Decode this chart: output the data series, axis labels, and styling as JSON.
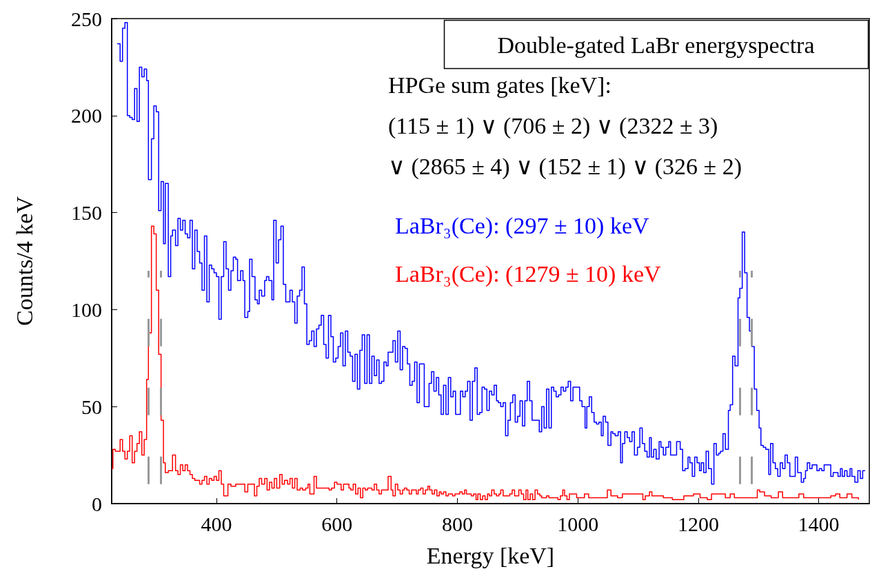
{
  "chart_data": {
    "type": "step",
    "title": "Double-gated LaBr energyspectra",
    "xlabel": "Energy [keV]",
    "ylabel": "Counts/4 keV",
    "annotations": [
      "HPGe sum gates [keV]:",
      "(115 ± 1) ∨ (706 ± 2) ∨ (2322 ± 3)",
      "∨ (2865 ± 4) ∨ (152 ± 1) ∨ (326 ± 2)"
    ],
    "xlim": [
      226,
      1484
    ],
    "xticks": [
      400,
      600,
      800,
      1000,
      1200,
      1400
    ],
    "ylim": [
      0,
      250
    ],
    "yticks": [
      0,
      50,
      100,
      150,
      200,
      250
    ],
    "grid": false,
    "legend": "top right",
    "marker": "none",
    "line_style": "solid",
    "ref_lines": [
      {
        "axis": "x",
        "value": 287,
        "color": "#999999",
        "line_style": "dashed"
      },
      {
        "axis": "x",
        "value": 307,
        "color": "#999999",
        "line_style": "dashed"
      },
      {
        "axis": "x",
        "value": 1269,
        "color": "#999999",
        "line_style": "dashed"
      },
      {
        "axis": "x",
        "value": 1289,
        "color": "#999999",
        "line_style": "dashed"
      }
    ],
    "series": [
      {
        "name": "LaBr₃(Ce): (297 ± 10) keV",
        "color": "#0000ff",
        "x": [
          235,
          240,
          244,
          248,
          252,
          256,
          260,
          264,
          268,
          272,
          276,
          280,
          284,
          287,
          292,
          296,
          300,
          304,
          308,
          312,
          315,
          320,
          324,
          327,
          332,
          336,
          340,
          344,
          348,
          352,
          356,
          360,
          364,
          368,
          372,
          376,
          380,
          384,
          388,
          392,
          396,
          400,
          404,
          408,
          412,
          416,
          420,
          424,
          428,
          432,
          435,
          440,
          444,
          447,
          452,
          455,
          459,
          464,
          468,
          471,
          475,
          480,
          483,
          487,
          492,
          495,
          499,
          503,
          507,
          511,
          515,
          518,
          522,
          526,
          530,
          534,
          538,
          542,
          546,
          550,
          554,
          558,
          562,
          566,
          570,
          574,
          578,
          582,
          586,
          590,
          594,
          598,
          602,
          606,
          610,
          614,
          618,
          622,
          626,
          630,
          634,
          638,
          642,
          646,
          650,
          654,
          658,
          662,
          666,
          670,
          674,
          678,
          682,
          685,
          689,
          693,
          697,
          701,
          705,
          709,
          713,
          717,
          721,
          725,
          729,
          733,
          737,
          741,
          745,
          753,
          757,
          761,
          765,
          769,
          773,
          777,
          781,
          785,
          789,
          793,
          797,
          801,
          805,
          809,
          813,
          817,
          821,
          825,
          829,
          833,
          837,
          841,
          845,
          849,
          853,
          857,
          861,
          865,
          868,
          872,
          876,
          880,
          884,
          888,
          892,
          896,
          900,
          904,
          908,
          912,
          916,
          920,
          924,
          936,
          940,
          944,
          948,
          952,
          956,
          960,
          964,
          968,
          972,
          976,
          980,
          984,
          988,
          992,
          997,
          1003,
          1007,
          1012,
          1015,
          1019,
          1023,
          1027,
          1031,
          1035,
          1039,
          1042,
          1046,
          1050,
          1055,
          1058,
          1062,
          1067,
          1071,
          1074,
          1078,
          1082,
          1086,
          1090,
          1094,
          1099,
          1103,
          1107,
          1111,
          1115,
          1119,
          1122,
          1126,
          1130,
          1135,
          1138,
          1142,
          1146,
          1151,
          1154,
          1164,
          1170,
          1174,
          1178,
          1183,
          1186,
          1190,
          1194,
          1198,
          1202,
          1205,
          1209,
          1213,
          1217,
          1222,
          1226,
          1230,
          1234,
          1237,
          1241,
          1245,
          1250,
          1253,
          1257,
          1261,
          1266,
          1269,
          1273,
          1277,
          1281,
          1285,
          1289,
          1293,
          1297,
          1301,
          1304,
          1308,
          1312,
          1317,
          1320,
          1324,
          1328,
          1332,
          1336,
          1340,
          1344,
          1348,
          1352,
          1361,
          1365,
          1371,
          1375,
          1378,
          1381,
          1385,
          1389,
          1394,
          1397,
          1401,
          1405,
          1409,
          1420,
          1424,
          1432,
          1436,
          1439,
          1443,
          1447,
          1452,
          1455,
          1460,
          1465,
          1469,
          1473,
          1477
        ],
        "values": [
          237,
          228,
          245,
          248,
          200,
          199,
          198,
          214,
          197,
          225,
          220,
          224,
          218,
          167,
          188,
          205,
          202,
          151,
          166,
          134,
          165,
          117,
          138,
          141,
          133,
          147,
          141,
          146,
          139,
          137,
          146,
          121,
          141,
          130,
          124,
          110,
          138,
          104,
          123,
          121,
          119,
          117,
          95,
          117,
          135,
          121,
          110,
          120,
          127,
          126,
          115,
          120,
          115,
          96,
          99,
          126,
          117,
          105,
          103,
          110,
          107,
          115,
          117,
          115,
          105,
          146,
          124,
          136,
          143,
          113,
          104,
          104,
          110,
          104,
          93,
          107,
          110,
          122,
          103,
          82,
          84,
          89,
          81,
          90,
          92,
          97,
          82,
          75,
          97,
          86,
          73,
          75,
          81,
          88,
          71,
          89,
          78,
          76,
          63,
          77,
          59,
          79,
          87,
          62,
          87,
          62,
          76,
          66,
          74,
          62,
          63,
          73,
          71,
          78,
          78,
          84,
          73,
          89,
          69,
          81,
          80,
          72,
          61,
          63,
          73,
          52,
          72,
          72,
          50,
          62,
          68,
          58,
          65,
          56,
          46,
          61,
          46,
          65,
          55,
          58,
          46,
          46,
          58,
          55,
          58,
          63,
          43,
          63,
          70,
          46,
          47,
          60,
          59,
          48,
          58,
          56,
          61,
          53,
          52,
          50,
          52,
          35,
          43,
          52,
          56,
          42,
          45,
          53,
          40,
          53,
          63,
          53,
          43,
          37,
          50,
          39,
          59,
          39,
          60,
          58,
          55,
          56,
          60,
          58,
          60,
          63,
          53,
          60,
          60,
          53,
          50,
          39,
          50,
          55,
          47,
          42,
          41,
          42,
          35,
          45,
          42,
          30,
          37,
          36,
          35,
          37,
          21,
          31,
          37,
          34,
          32,
          37,
          25,
          29,
          39,
          31,
          27,
          24,
          34,
          24,
          28,
          23,
          32,
          29,
          25,
          29,
          32,
          25,
          32,
          28,
          17,
          18,
          24,
          21,
          14,
          24,
          21,
          17,
          21,
          16,
          27,
          18,
          10,
          31,
          25,
          26,
          27,
          36,
          28,
          48,
          51,
          76,
          71,
          106,
          111,
          140,
          119,
          96,
          89,
          81,
          59,
          48,
          39,
          30,
          29,
          28,
          15,
          31,
          21,
          18,
          14,
          21,
          18,
          25,
          21,
          14,
          24,
          16,
          11,
          13,
          17,
          21,
          18,
          20,
          20,
          17,
          18,
          17,
          20,
          14,
          16,
          14,
          18,
          14,
          17,
          14,
          18,
          14,
          11,
          17,
          13,
          17,
          17
        ]
      },
      {
        "name": "LaBr₃(Ce): (1279 ± 10) keV",
        "color": "#ff0000",
        "x": [
          226,
          228,
          232,
          240,
          244,
          248,
          252,
          256,
          260,
          264,
          268,
          272,
          276,
          280,
          284,
          287,
          292,
          296,
          300,
          304,
          308,
          312,
          315,
          320,
          327,
          332,
          336,
          340,
          344,
          348,
          352,
          356,
          360,
          364,
          372,
          376,
          380,
          384,
          388,
          392,
          396,
          400,
          404,
          408,
          412,
          419,
          424,
          432,
          447,
          452,
          463,
          467,
          471,
          475,
          480,
          484,
          488,
          492,
          496,
          500,
          505,
          509,
          513,
          518,
          522,
          526,
          530,
          534,
          539,
          543,
          548,
          552,
          555,
          562,
          566,
          578,
          582,
          587,
          591,
          596,
          600,
          603,
          607,
          611,
          616,
          620,
          623,
          627,
          631,
          635,
          639,
          643,
          647,
          651,
          655,
          658,
          662,
          666,
          670,
          674,
          677,
          681,
          685,
          690,
          693,
          697,
          701,
          705,
          709,
          712,
          716,
          720,
          724,
          728,
          732,
          735,
          739,
          743,
          747,
          751,
          754,
          758,
          762,
          766,
          770,
          773,
          777,
          781,
          785,
          792,
          796,
          800,
          804,
          808,
          812,
          815,
          819,
          823,
          827,
          831,
          834,
          838,
          842,
          846,
          850,
          853,
          857,
          861,
          865,
          869,
          872,
          876,
          880,
          887,
          891,
          895,
          898,
          902,
          906,
          910,
          914,
          917,
          921,
          925,
          929,
          933,
          937,
          940,
          948,
          952,
          956,
          959,
          963,
          967,
          971,
          975,
          978,
          982,
          986,
          994,
          998,
          1011,
          1018,
          1022,
          1049,
          1055,
          1066,
          1074,
          1108,
          1112,
          1119,
          1123,
          1142,
          1157,
          1176,
          1192,
          1197,
          1203,
          1215,
          1222,
          1230,
          1245,
          1253,
          1260,
          1268,
          1279,
          1286,
          1291,
          1298,
          1302,
          1310,
          1321,
          1333,
          1340,
          1359,
          1367,
          1375,
          1397,
          1420,
          1428,
          1435,
          1447,
          1455,
          1466
        ],
        "values": [
          18,
          28,
          27,
          33,
          27,
          23,
          27,
          35,
          21,
          27,
          31,
          37,
          25,
          33,
          64,
          88,
          143,
          139,
          110,
          77,
          43,
          21,
          16,
          17,
          25,
          17,
          15,
          20,
          17,
          20,
          17,
          15,
          13,
          12,
          10,
          12,
          14,
          10,
          13,
          12,
          14,
          12,
          17,
          10,
          4,
          10,
          9,
          10,
          6,
          10,
          4,
          9,
          13,
          10,
          13,
          7,
          11,
          8,
          13,
          8,
          15,
          10,
          12,
          10,
          13,
          8,
          13,
          7,
          8,
          7,
          8,
          10,
          5,
          14,
          8,
          8,
          8,
          7,
          8,
          11,
          10,
          10,
          7,
          10,
          10,
          8,
          7,
          10,
          5,
          8,
          3,
          8,
          7,
          8,
          8,
          7,
          10,
          7,
          5,
          7,
          7,
          7,
          14,
          7,
          4,
          10,
          7,
          5,
          7,
          8,
          7,
          5,
          7,
          7,
          5,
          7,
          8,
          5,
          7,
          9,
          7,
          5,
          7,
          4,
          6,
          5,
          6,
          4,
          5,
          4,
          5,
          5,
          6,
          5,
          7,
          5,
          5,
          4,
          5,
          2,
          5,
          2,
          4,
          2,
          5,
          4,
          7,
          5,
          4,
          5,
          7,
          4,
          4,
          5,
          7,
          4,
          4,
          7,
          5,
          2,
          7,
          2,
          5,
          2,
          7,
          5,
          4,
          3,
          4,
          3,
          3,
          3,
          3,
          2,
          4,
          7,
          4,
          2,
          5,
          5,
          3,
          5,
          3,
          3,
          7,
          4,
          3,
          5,
          2,
          4,
          6,
          4,
          3,
          2,
          4,
          5,
          5,
          3,
          2,
          5,
          5,
          3,
          5,
          3,
          3,
          3,
          3,
          3,
          7,
          6,
          4,
          3,
          6,
          3,
          3,
          5,
          3,
          3,
          4,
          5,
          3,
          5,
          3,
          2
        ]
      }
    ]
  }
}
